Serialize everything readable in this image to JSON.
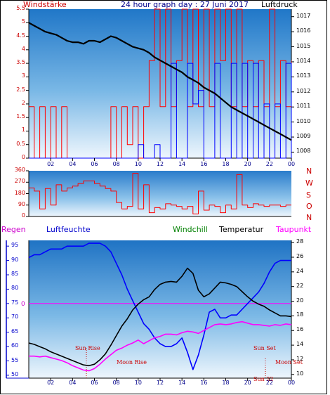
{
  "header": {
    "left": "Windstärke",
    "title": "24 hour graph day : 27 Juni 2017",
    "right": "Luftdruck"
  },
  "direction_labels": [
    "N",
    "W",
    "S",
    "O",
    "N"
  ],
  "legend": {
    "regen": "Regen",
    "luftfeuchte": "Luftfeuchte",
    "windchill": "Windchill",
    "temperatur": "Temperatur",
    "taupunkt": "Taupunkt"
  },
  "events": {
    "sun_rise": "Sun Rise",
    "moon_rise": "Moon Rise",
    "sun_set": "Sun Set",
    "moon_set": "Moon Set",
    "sun_22": "Sun 22"
  },
  "colors": {
    "wind": "#ff0000",
    "gust": "#0000ff",
    "pressure": "#000000",
    "direction": "#ff0000",
    "humidity": "#0000ff",
    "temperature": "#000000",
    "dewpoint": "#ff00ff",
    "windchill": "#008000",
    "regen_label": "#cc00cc",
    "event_text": "#cc0000"
  },
  "chart_data": [
    {
      "type": "line",
      "title": "24 hour graph day : 27 Juni 2017",
      "xlabel": "",
      "xticks": [
        "02",
        "04",
        "06",
        "08",
        "10",
        "12",
        "14",
        "16",
        "18",
        "20",
        "22",
        "00"
      ],
      "xlim": [
        0,
        24
      ],
      "left_axis": {
        "label": "Windstärke",
        "ticks": [
          "0",
          "0.5",
          "1",
          "1.5",
          "2",
          "2.5",
          "3",
          "3.5",
          "4",
          "4.5",
          "5",
          "5.5"
        ],
        "ylim": [
          0,
          5.5
        ]
      },
      "right_axis": {
        "label": "Luftdruck",
        "ticks": [
          "1008",
          "1009",
          "1010",
          "1011",
          "1012",
          "1013",
          "1014",
          "1015",
          "1016",
          "1017"
        ],
        "ylim": [
          1007.6,
          1017.5
        ]
      },
      "series": [
        {
          "name": "Luftdruck",
          "axis": "right",
          "x": [
            0,
            0.5,
            1,
            1.5,
            2,
            2.5,
            3,
            3.5,
            4,
            4.5,
            5,
            5.5,
            6,
            6.5,
            7,
            7.5,
            8,
            8.5,
            9,
            9.5,
            10,
            10.5,
            11,
            11.5,
            12,
            12.5,
            13,
            13.5,
            14,
            14.5,
            15,
            15.5,
            16,
            16.5,
            17,
            17.5,
            18,
            18.5,
            19,
            19.5,
            20,
            20.5,
            21,
            21.5,
            22,
            22.5,
            23,
            23.5,
            24
          ],
          "y": [
            1016.6,
            1016.4,
            1016.2,
            1016.0,
            1015.9,
            1015.8,
            1015.6,
            1015.4,
            1015.3,
            1015.3,
            1015.2,
            1015.4,
            1015.4,
            1015.3,
            1015.5,
            1015.7,
            1015.6,
            1015.4,
            1015.2,
            1015.0,
            1014.9,
            1014.8,
            1014.6,
            1014.3,
            1014.1,
            1013.9,
            1013.7,
            1013.5,
            1013.3,
            1013.0,
            1012.8,
            1012.6,
            1012.3,
            1012.1,
            1011.9,
            1011.6,
            1011.3,
            1011.0,
            1010.8,
            1010.6,
            1010.4,
            1010.2,
            1010.0,
            1009.8,
            1009.6,
            1009.4,
            1009.2,
            1009.0,
            1008.8
          ]
        },
        {
          "name": "Windböen",
          "axis": "left",
          "x": [
            0,
            0.5,
            1,
            1.5,
            2,
            2.5,
            3,
            3.5,
            4,
            4.5,
            5,
            5.5,
            6,
            6.5,
            7,
            7.5,
            8,
            8.5,
            9,
            9.5,
            10,
            10.5,
            11,
            11.5,
            12,
            12.5,
            13,
            13.5,
            14,
            14.5,
            15,
            15.5,
            16,
            16.5,
            17,
            17.5,
            18,
            18.5,
            19,
            19.5,
            20,
            20.5,
            21,
            21.5,
            22,
            22.5,
            23,
            23.5,
            24
          ],
          "y": [
            0,
            0,
            0,
            0,
            0,
            0,
            0,
            0,
            0,
            0,
            0,
            0,
            0,
            0,
            0,
            0,
            0,
            0,
            0,
            0,
            0.5,
            0,
            0,
            0.5,
            0,
            0,
            3.5,
            0,
            0,
            3.5,
            2,
            2.5,
            0,
            0,
            3.5,
            0,
            0,
            3.5,
            0,
            3.5,
            0,
            3.5,
            0,
            2,
            0,
            2,
            0,
            3.5,
            0
          ]
        },
        {
          "name": "Windstärke",
          "axis": "left",
          "x": [
            0,
            0.5,
            1,
            1.5,
            2,
            2.5,
            3,
            3.5,
            4,
            4.5,
            5,
            5.5,
            6,
            6.5,
            7,
            7.5,
            8,
            8.5,
            9,
            9.5,
            10,
            10.5,
            11,
            11.5,
            12,
            12.5,
            13,
            13.5,
            14,
            14.5,
            15,
            15.5,
            16,
            16.5,
            17,
            17.5,
            18,
            18.5,
            19,
            19.5,
            20,
            20.5,
            21,
            21.5,
            22,
            22.5,
            23,
            23.5,
            24
          ],
          "y": [
            1.9,
            0,
            1.9,
            0,
            1.9,
            0,
            1.9,
            0,
            0,
            0,
            0,
            0,
            0,
            0,
            0,
            1.9,
            0,
            1.9,
            0.5,
            1.9,
            0,
            1.9,
            3.6,
            5.5,
            1.9,
            5.5,
            1.9,
            3.6,
            5.5,
            1.9,
            5.5,
            1.9,
            5.5,
            1.9,
            5.5,
            3.6,
            5.5,
            1.9,
            5.5,
            1.9,
            3.6,
            1.9,
            3.6,
            1.9,
            5.5,
            1.9,
            3.6,
            1.9,
            3.6
          ]
        }
      ],
      "grid": false,
      "legend": "none"
    },
    {
      "type": "line",
      "title": "",
      "xlim": [
        0,
        24
      ],
      "left_axis": {
        "label": "",
        "ticks": [
          "0",
          "90",
          "180",
          "270",
          "360"
        ],
        "ylim": [
          0,
          360
        ]
      },
      "right_axis": {
        "label": "N W S O N",
        "ticks": []
      },
      "series": [
        {
          "name": "Windrichtung",
          "axis": "left",
          "x": [
            0,
            0.5,
            1,
            1.5,
            2,
            2.5,
            3,
            3.5,
            4,
            4.5,
            5,
            5.5,
            6,
            6.5,
            7,
            7.5,
            8,
            8.5,
            9,
            9.5,
            10,
            10.5,
            11,
            11.5,
            12,
            12.5,
            13,
            13.5,
            14,
            14.5,
            15,
            15.5,
            16,
            16.5,
            17,
            17.5,
            18,
            18.5,
            19,
            19.5,
            20,
            20.5,
            21,
            21.5,
            22,
            22.5,
            23,
            23.5,
            24
          ],
          "y": [
            225,
            200,
            60,
            220,
            90,
            250,
            200,
            225,
            240,
            260,
            280,
            280,
            260,
            240,
            220,
            200,
            110,
            60,
            80,
            340,
            60,
            250,
            30,
            70,
            60,
            100,
            90,
            80,
            60,
            80,
            20,
            200,
            50,
            90,
            80,
            30,
            90,
            60,
            330,
            90,
            70,
            100,
            90,
            80,
            90,
            90,
            80,
            90,
            90
          ]
        }
      ],
      "grid": false,
      "legend": "none"
    },
    {
      "type": "line",
      "title": "",
      "xticks": [
        "02",
        "04",
        "06",
        "08",
        "10",
        "12",
        "14",
        "16",
        "18",
        "20",
        "22",
        "00"
      ],
      "xlim": [
        0,
        24
      ],
      "left_axis": {
        "label": "Luftfeuchte",
        "ticks": [
          "50",
          "55",
          "60",
          "65",
          "70",
          "75",
          "80",
          "85",
          "90",
          "95"
        ],
        "ylim": [
          49,
          97
        ]
      },
      "right_axis": {
        "label": "Temperatur",
        "ticks": [
          "10",
          "12",
          "14",
          "16",
          "18",
          "20",
          "22",
          "24",
          "26",
          "28"
        ],
        "ylim": [
          9.5,
          28.3
        ]
      },
      "extra_labels": {
        "regen_zero": "0"
      },
      "series": [
        {
          "name": "Luftfeuchte",
          "axis": "left",
          "x": [
            0,
            0.5,
            1,
            1.5,
            2,
            2.5,
            3,
            3.5,
            4,
            4.5,
            5,
            5.5,
            6,
            6.5,
            7,
            7.5,
            8,
            8.5,
            9,
            9.5,
            10,
            10.5,
            11,
            11.5,
            12,
            12.5,
            13,
            13.5,
            14,
            14.5,
            15,
            15.5,
            16,
            16.5,
            17,
            17.5,
            18,
            18.5,
            19,
            19.5,
            20,
            20.5,
            21,
            21.5,
            22,
            22.5,
            23,
            23.5,
            24
          ],
          "y": [
            91,
            92,
            92,
            93,
            94,
            94,
            94,
            95,
            95,
            95,
            95,
            96,
            96,
            96,
            95,
            93,
            89,
            85,
            80,
            76,
            72,
            68,
            66,
            63,
            61,
            60,
            60,
            61,
            63,
            58,
            52,
            57,
            64,
            72,
            73,
            70,
            70,
            71,
            71,
            73,
            75,
            77,
            79,
            82,
            86,
            89,
            90,
            90,
            90
          ]
        },
        {
          "name": "Temperatur",
          "axis": "right",
          "x": [
            0,
            0.5,
            1,
            1.5,
            2,
            2.5,
            3,
            3.5,
            4,
            4.5,
            5,
            5.5,
            6,
            6.5,
            7,
            7.5,
            8,
            8.5,
            9,
            9.5,
            10,
            10.5,
            11,
            11.5,
            12,
            12.5,
            13,
            13.5,
            14,
            14.5,
            15,
            15.5,
            16,
            16.5,
            17,
            17.5,
            18,
            18.5,
            19,
            19.5,
            20,
            20.5,
            21,
            21.5,
            22,
            22.5,
            23,
            23.5,
            24
          ],
          "y": [
            14.3,
            14.1,
            13.8,
            13.5,
            13.1,
            12.8,
            12.5,
            12.2,
            11.9,
            11.6,
            11.3,
            11.2,
            11.4,
            12.0,
            12.8,
            14.0,
            15.3,
            16.6,
            17.6,
            18.8,
            19.6,
            20.2,
            20.6,
            21.6,
            22.3,
            22.6,
            22.7,
            22.6,
            23.4,
            24.5,
            23.8,
            21.5,
            20.6,
            21.0,
            21.8,
            22.6,
            22.5,
            22.3,
            22.0,
            21.3,
            20.6,
            20.0,
            19.6,
            19.3,
            18.8,
            18.4,
            18.0,
            18.0,
            17.9
          ]
        },
        {
          "name": "Taupunkt",
          "axis": "right",
          "x": [
            0,
            0.5,
            1,
            1.5,
            2,
            2.5,
            3,
            3.5,
            4,
            4.5,
            5,
            5.5,
            6,
            6.5,
            7,
            7.5,
            8,
            8.5,
            9,
            9.5,
            10,
            10.5,
            11,
            11.5,
            12,
            12.5,
            13,
            13.5,
            14,
            14.5,
            15,
            15.5,
            16,
            16.5,
            17,
            17.5,
            18,
            18.5,
            19,
            19.5,
            20,
            20.5,
            21,
            21.5,
            22,
            22.5,
            23,
            23.5,
            24
          ],
          "y": [
            12.5,
            12.5,
            12.4,
            12.5,
            12.3,
            12.1,
            11.9,
            11.6,
            11.2,
            10.9,
            10.6,
            10.5,
            10.8,
            11.4,
            12.1,
            12.7,
            13.3,
            13.6,
            14.0,
            14.3,
            14.7,
            14.2,
            14.6,
            15.0,
            15.2,
            15.5,
            15.5,
            15.4,
            15.7,
            15.9,
            15.8,
            15.6,
            16.0,
            16.4,
            16.8,
            16.9,
            16.8,
            16.9,
            17.1,
            17.2,
            17.0,
            16.8,
            16.8,
            16.7,
            16.6,
            16.8,
            16.7,
            16.9,
            16.8
          ]
        },
        {
          "name": "Regen",
          "axis": "left",
          "x": [
            0,
            24
          ],
          "y": [
            75,
            75
          ]
        }
      ],
      "grid": false,
      "legend": "top"
    }
  ]
}
